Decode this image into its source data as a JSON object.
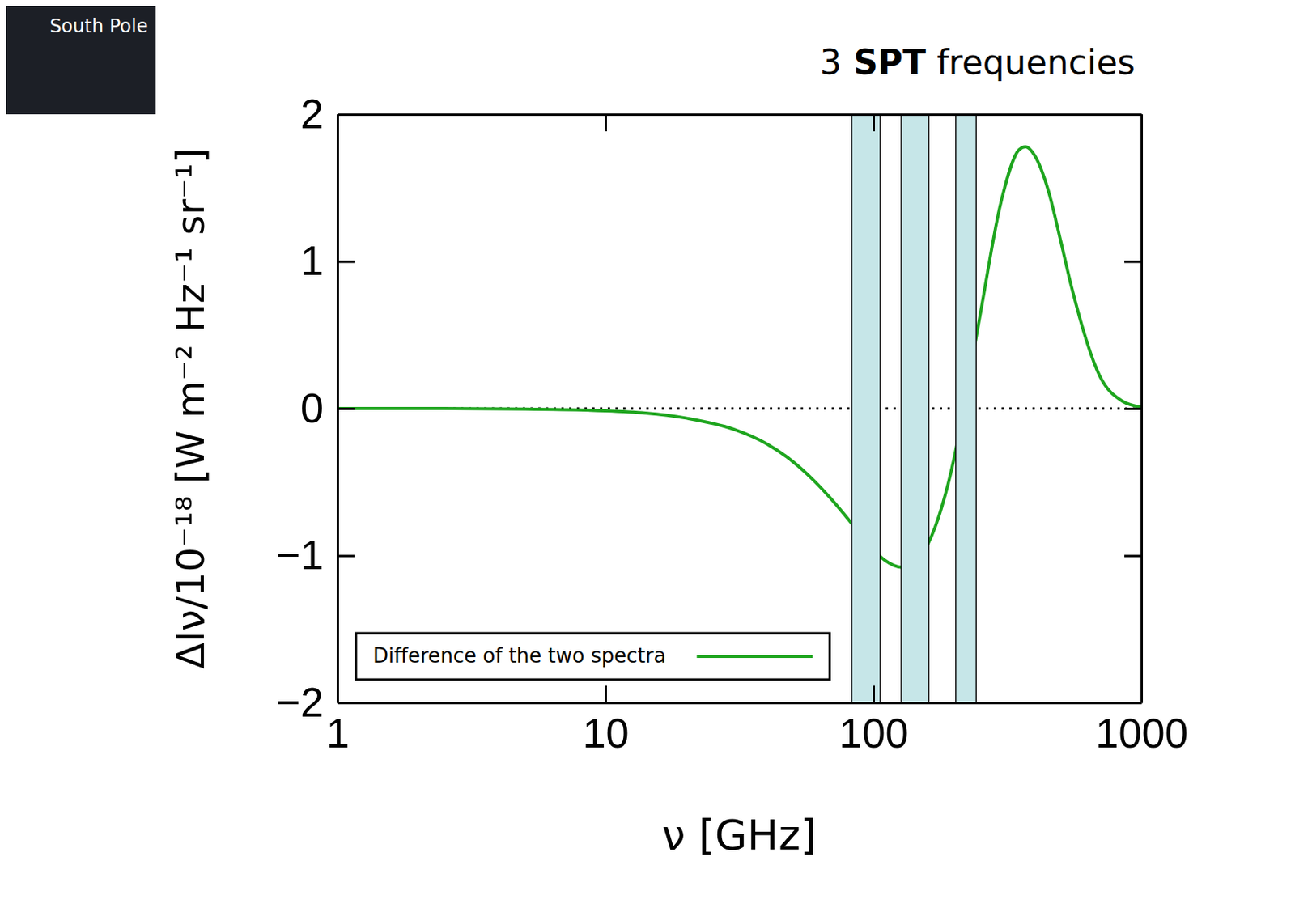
{
  "chart_data": {
    "type": "line",
    "title": "3 SPT frequencies",
    "x_label": "ν [GHz]",
    "y_label": "ΔIν/10⁻¹⁸ [W m⁻² Hz⁻¹ sr⁻¹]",
    "annotations": [
      "South Pole"
    ],
    "log": "x",
    "xlim": [
      1,
      1000
    ],
    "xticks": [
      1,
      10,
      100,
      1000
    ],
    "ylim": [
      -2,
      2
    ],
    "yticks": [
      -2,
      -1,
      0,
      1,
      2
    ],
    "reference_line": 0,
    "bands": [
      [
        83,
        106
      ],
      [
        127,
        161
      ],
      [
        203,
        242
      ]
    ],
    "band_color": "#c6e6e8",
    "legend": "lower left",
    "x": [
      1,
      2,
      5,
      10,
      20,
      30,
      40,
      50,
      60,
      70,
      90,
      100,
      110,
      128,
      150,
      160,
      180,
      200,
      217,
      250,
      300,
      350,
      370,
      400,
      450,
      500,
      550,
      700,
      850,
      1000
    ],
    "series": [
      {
        "name": "Difference of the two spectra",
        "color": "#1ea51e",
        "values": [
          0,
          0,
          -0.004,
          -0.016,
          -0.065,
          -0.14,
          -0.24,
          -0.36,
          -0.49,
          -0.62,
          -0.86,
          -0.96,
          -1.03,
          -1.08,
          -1.01,
          -0.92,
          -0.67,
          -0.34,
          0,
          0.63,
          1.41,
          1.76,
          1.78,
          1.72,
          1.48,
          1.14,
          0.82,
          0.22,
          0.05,
          0.01
        ]
      }
    ]
  }
}
